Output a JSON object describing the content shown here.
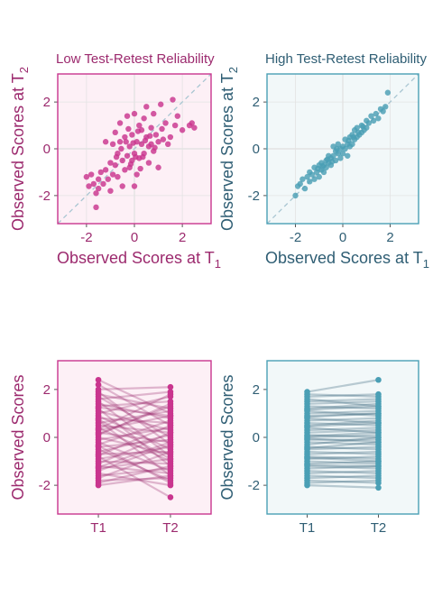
{
  "colors": {
    "pink": "#c9358e",
    "pink_dark": "#9c2a6e",
    "pink_bg": "#fdf0f6",
    "teal": "#4a9fb5",
    "teal_dark": "#2f5e74",
    "teal_bg": "#f2f8f9",
    "identity_line": "#a9c6d2",
    "grid": "#e3e3e3"
  },
  "chart_data": [
    {
      "type": "scatter",
      "title": "Low Test-Retest Reliability",
      "xlabel": "Observed Scores at T1",
      "ylabel": "Observed Scores at T2",
      "xlim": [
        -3.2,
        3.2
      ],
      "ylim": [
        -3.2,
        3.2
      ],
      "xticks": [
        "-2",
        "0",
        "2"
      ],
      "yticks": [
        "-2",
        "0",
        "2"
      ],
      "reference_line": "y = x",
      "points": [
        [
          -2.0,
          -1.2
        ],
        [
          -1.9,
          -1.6
        ],
        [
          -1.8,
          -1.1
        ],
        [
          -1.7,
          -1.5
        ],
        [
          -1.6,
          -1.9
        ],
        [
          -1.6,
          -2.5
        ],
        [
          -1.5,
          -1.3
        ],
        [
          -1.5,
          -1.7
        ],
        [
          -1.4,
          -1.0
        ],
        [
          -1.3,
          -1.5
        ],
        [
          -1.2,
          -0.9
        ],
        [
          -1.2,
          0.3
        ],
        [
          -1.1,
          -1.3
        ],
        [
          -1.0,
          -0.6
        ],
        [
          -1.0,
          -1.8
        ],
        [
          -0.9,
          0.2
        ],
        [
          -0.9,
          -1.1
        ],
        [
          -0.8,
          0.7
        ],
        [
          -0.8,
          -0.7
        ],
        [
          -0.7,
          -1.2
        ],
        [
          -0.7,
          -0.2
        ],
        [
          -0.6,
          1.1
        ],
        [
          -0.6,
          0.3
        ],
        [
          -0.5,
          -0.5
        ],
        [
          -0.5,
          -1.6
        ],
        [
          -0.4,
          -0.9
        ],
        [
          -0.4,
          0.5
        ],
        [
          -0.3,
          1.4
        ],
        [
          -0.3,
          -0.3
        ],
        [
          -0.2,
          0.1
        ],
        [
          -0.2,
          -0.8
        ],
        [
          -0.1,
          -0.5
        ],
        [
          -0.1,
          0.6
        ],
        [
          0.0,
          1.5
        ],
        [
          0.0,
          -0.2
        ],
        [
          0.0,
          -1.6
        ],
        [
          0.1,
          0.3
        ],
        [
          0.1,
          -1.1
        ],
        [
          0.2,
          1.0
        ],
        [
          0.2,
          -0.4
        ],
        [
          0.3,
          0.8
        ],
        [
          0.3,
          0.2
        ],
        [
          0.4,
          1.3
        ],
        [
          0.4,
          -0.2
        ],
        [
          0.5,
          0.5
        ],
        [
          0.5,
          1.8
        ],
        [
          0.6,
          0.1
        ],
        [
          0.6,
          -0.6
        ],
        [
          0.7,
          0.9
        ],
        [
          0.7,
          0.2
        ],
        [
          0.8,
          1.5
        ],
        [
          0.8,
          -0.1
        ],
        [
          0.9,
          0.6
        ],
        [
          1.0,
          0.3
        ],
        [
          1.0,
          -0.8
        ],
        [
          1.1,
          1.9
        ],
        [
          1.2,
          0.4
        ],
        [
          1.3,
          1.1
        ],
        [
          1.4,
          0.2
        ],
        [
          1.5,
          0.5
        ],
        [
          1.6,
          2.1
        ],
        [
          1.7,
          1.0
        ],
        [
          1.8,
          1.4
        ],
        [
          2.0,
          0.8
        ],
        [
          2.3,
          1.0
        ],
        [
          2.4,
          1.1
        ],
        [
          2.5,
          0.9
        ],
        [
          -0.35,
          0.3
        ],
        [
          -0.15,
          -0.65
        ],
        [
          0.15,
          0.75
        ],
        [
          0.35,
          -0.35
        ],
        [
          0.45,
          0.35
        ],
        [
          -0.55,
          0.0
        ],
        [
          0.25,
          -0.85
        ],
        [
          -0.25,
          0.85
        ],
        [
          0.65,
          0.55
        ],
        [
          -0.75,
          -0.35
        ],
        [
          0.85,
          0.05
        ],
        [
          -0.05,
          0.25
        ],
        [
          0.05,
          -0.35
        ],
        [
          1.15,
          0.85
        ]
      ]
    },
    {
      "type": "scatter",
      "title": "High Test-Retest Reliability",
      "xlabel": "Observed Scores at T1",
      "ylabel": "Observed Scores at T2",
      "xlim": [
        -3.2,
        3.2
      ],
      "ylim": [
        -3.2,
        3.2
      ],
      "xticks": [
        "-2",
        "0",
        "2"
      ],
      "yticks": [
        "-2",
        "0",
        "2"
      ],
      "reference_line": "y = x",
      "points": [
        [
          -2.0,
          -2.0
        ],
        [
          -1.9,
          -1.6
        ],
        [
          -1.8,
          -1.5
        ],
        [
          -1.7,
          -1.3
        ],
        [
          -1.6,
          -1.7
        ],
        [
          -1.5,
          -1.2
        ],
        [
          -1.4,
          -1.0
        ],
        [
          -1.4,
          -1.4
        ],
        [
          -1.3,
          -1.1
        ],
        [
          -1.2,
          -0.8
        ],
        [
          -1.2,
          -1.3
        ],
        [
          -1.1,
          -1.0
        ],
        [
          -1.0,
          -0.7
        ],
        [
          -1.0,
          -1.2
        ],
        [
          -0.9,
          -0.6
        ],
        [
          -0.9,
          -0.9
        ],
        [
          -0.8,
          -0.7
        ],
        [
          -0.8,
          -1.0
        ],
        [
          -0.7,
          -0.5
        ],
        [
          -0.7,
          -0.8
        ],
        [
          -0.6,
          -0.3
        ],
        [
          -0.6,
          -0.6
        ],
        [
          -0.5,
          -0.4
        ],
        [
          -0.5,
          -0.7
        ],
        [
          -0.4,
          0.1
        ],
        [
          -0.4,
          -0.3
        ],
        [
          -0.3,
          -0.1
        ],
        [
          -0.3,
          -0.5
        ],
        [
          -0.2,
          0.2
        ],
        [
          -0.2,
          -0.2
        ],
        [
          -0.1,
          0.0
        ],
        [
          -0.1,
          -0.4
        ],
        [
          0.0,
          0.1
        ],
        [
          0.0,
          -0.2
        ],
        [
          0.1,
          0.4
        ],
        [
          0.1,
          0.0
        ],
        [
          0.2,
          0.2
        ],
        [
          0.2,
          -0.3
        ],
        [
          0.3,
          0.5
        ],
        [
          0.3,
          0.1
        ],
        [
          0.4,
          0.6
        ],
        [
          0.4,
          0.2
        ],
        [
          0.5,
          0.4
        ],
        [
          0.5,
          0.8
        ],
        [
          0.6,
          0.5
        ],
        [
          0.6,
          0.9
        ],
        [
          0.7,
          0.6
        ],
        [
          0.8,
          1.0
        ],
        [
          0.8,
          0.7
        ],
        [
          0.9,
          0.8
        ],
        [
          1.0,
          1.2
        ],
        [
          1.0,
          0.9
        ],
        [
          1.1,
          1.1
        ],
        [
          1.2,
          1.4
        ],
        [
          1.3,
          1.2
        ],
        [
          1.4,
          1.5
        ],
        [
          1.5,
          1.3
        ],
        [
          1.6,
          1.7
        ],
        [
          1.7,
          1.6
        ],
        [
          1.8,
          1.8
        ],
        [
          1.9,
          2.4
        ],
        [
          -0.25,
          0.0
        ],
        [
          -0.45,
          -0.55
        ],
        [
          0.25,
          0.35
        ],
        [
          0.45,
          0.5
        ],
        [
          -0.65,
          -0.45
        ],
        [
          0.65,
          0.7
        ],
        [
          -0.85,
          -0.75
        ],
        [
          0.85,
          0.95
        ],
        [
          -1.05,
          -0.85
        ]
      ]
    },
    {
      "type": "line",
      "ylabel": "Observed Scores",
      "categories": [
        "T1",
        "T2"
      ],
      "ylim": [
        -3.2,
        3.2
      ],
      "yticks": [
        "-2",
        "0",
        "2"
      ],
      "t1": [
        2.4,
        2.2,
        2.0,
        1.9,
        1.8,
        1.7,
        1.6,
        1.5,
        1.4,
        1.3,
        1.2,
        1.1,
        1.0,
        0.9,
        0.8,
        0.7,
        0.6,
        0.5,
        0.4,
        0.3,
        0.2,
        0.1,
        0.0,
        -0.1,
        -0.2,
        -0.3,
        -0.4,
        -0.5,
        -0.6,
        -0.7,
        -0.8,
        -0.9,
        -1.0,
        -1.1,
        -1.2,
        -1.3,
        -1.4,
        -1.5,
        -1.6,
        -1.7,
        -1.8,
        -1.9,
        -2.0,
        0.35,
        -0.35,
        0.75,
        -0.75,
        1.25,
        -1.25,
        0.15
      ],
      "t2": [
        1.0,
        0.5,
        2.1,
        -0.3,
        1.2,
        0.0,
        1.9,
        -0.8,
        0.8,
        1.5,
        -1.2,
        0.3,
        1.7,
        -0.5,
        0.6,
        -1.6,
        1.1,
        0.2,
        -1.0,
        0.9,
        -0.2,
        1.4,
        -0.7,
        0.4,
        -1.4,
        0.7,
        -0.1,
        -1.8,
        0.1,
        -0.6,
        -2.5,
        -0.4,
        -1.1,
        0.2,
        -1.5,
        -0.9,
        -0.3,
        -2.0,
        -1.3,
        -0.6,
        -1.7,
        -1.2,
        -1.6,
        1.8,
        -1.9,
        -0.9,
        0.5,
        0.9,
        -0.2,
        1.3
      ]
    },
    {
      "type": "line",
      "ylabel": "Observed Scores",
      "categories": [
        "T1",
        "T2"
      ],
      "ylim": [
        -3.2,
        3.2
      ],
      "yticks": [
        "-2",
        "0",
        "2"
      ],
      "t1": [
        1.9,
        1.8,
        1.7,
        1.6,
        1.5,
        1.4,
        1.3,
        1.2,
        1.1,
        1.0,
        0.9,
        0.8,
        0.7,
        0.6,
        0.5,
        0.4,
        0.3,
        0.2,
        0.1,
        0.0,
        -0.1,
        -0.2,
        -0.3,
        -0.4,
        -0.5,
        -0.6,
        -0.7,
        -0.8,
        -0.9,
        -1.0,
        -1.1,
        -1.2,
        -1.3,
        -1.4,
        -1.5,
        -1.6,
        -1.7,
        -1.8,
        -1.9,
        -2.0,
        0.45,
        -0.45,
        0.85,
        -0.85,
        1.15,
        -1.15,
        0.05,
        -0.05
      ],
      "t2": [
        2.4,
        1.7,
        1.8,
        1.3,
        1.6,
        1.5,
        1.2,
        1.4,
        0.9,
        1.1,
        1.0,
        0.6,
        0.8,
        0.5,
        0.7,
        0.2,
        0.4,
        0.3,
        0.0,
        0.1,
        -0.1,
        -0.3,
        0.0,
        -0.5,
        -0.4,
        -0.7,
        -0.6,
        -0.9,
        -0.8,
        -1.1,
        -1.0,
        -1.3,
        -1.2,
        -1.5,
        -1.4,
        -1.7,
        -1.6,
        -1.9,
        -1.8,
        -2.1,
        0.6,
        -0.2,
        1.0,
        -1.0,
        1.3,
        -1.2,
        0.2,
        -0.2
      ]
    }
  ]
}
